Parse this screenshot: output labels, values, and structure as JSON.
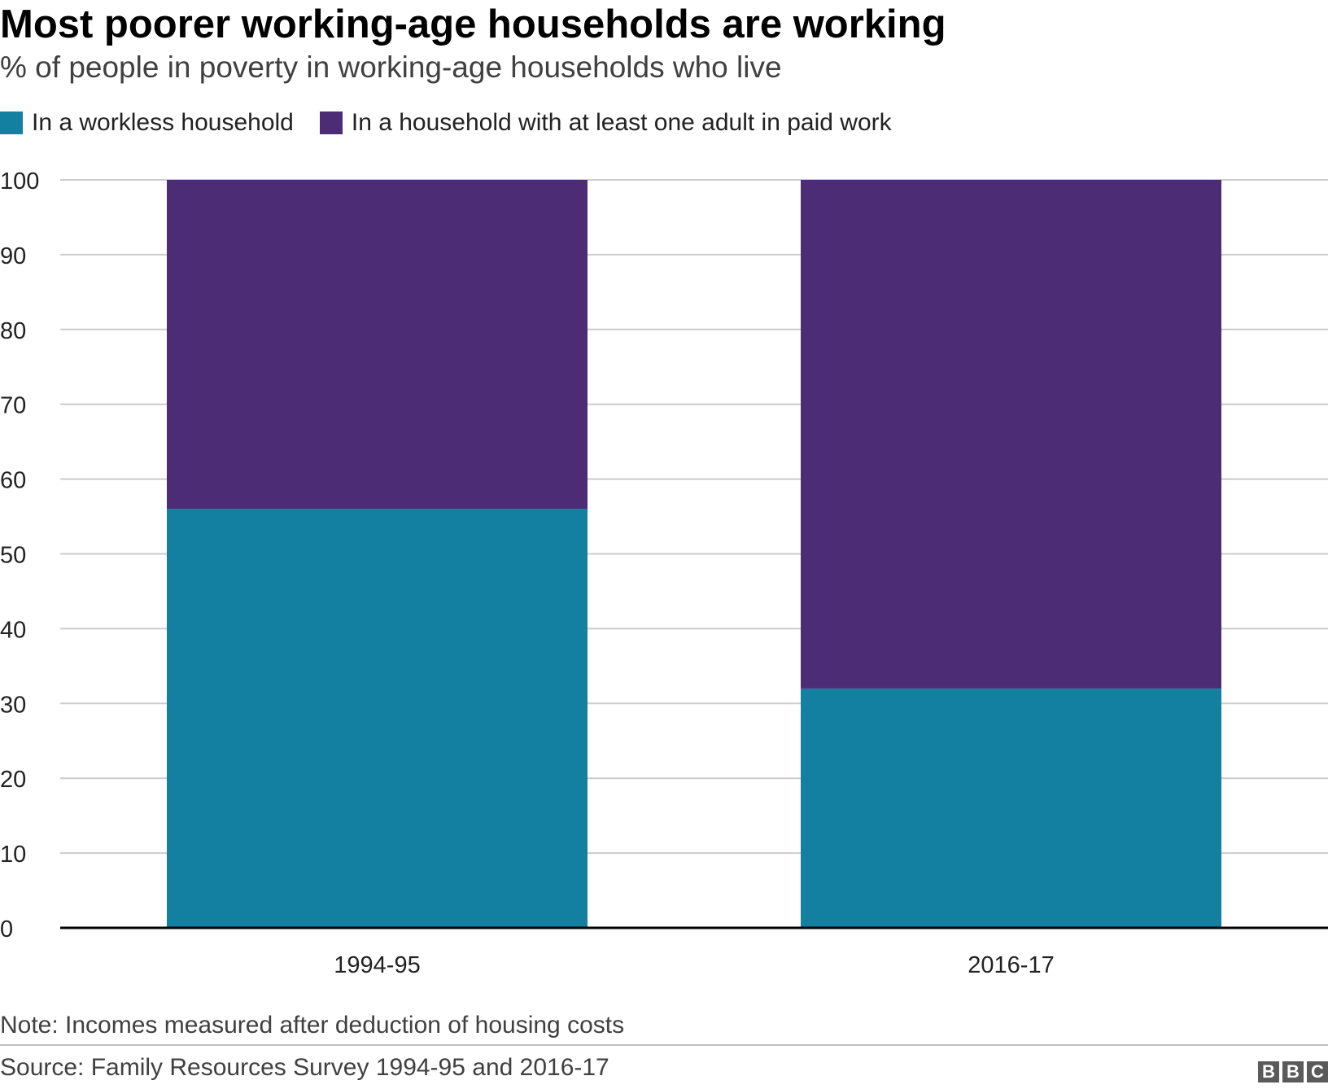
{
  "chart_data": {
    "type": "bar",
    "stacked": true,
    "title": "Most poorer working-age households are working",
    "subtitle": "% of people in poverty in working-age households who live",
    "categories": [
      "1994-95",
      "2016-17"
    ],
    "series": [
      {
        "name": "In a workless household",
        "color": "#1380A1",
        "values": [
          56,
          32
        ]
      },
      {
        "name": "In a household with at least one adult in paid work",
        "color": "#4B2C75",
        "values": [
          44,
          68
        ]
      }
    ],
    "ylim": [
      0,
      100
    ],
    "yticks": [
      0,
      10,
      20,
      30,
      40,
      50,
      60,
      70,
      80,
      90,
      100
    ],
    "xlabel": "",
    "ylabel": "",
    "grid": true,
    "legend_position": "top-left"
  },
  "footer": {
    "note": "Note: Incomes measured after deduction of housing costs",
    "source": "Source: Family Resources Survey 1994-95 and 2016-17",
    "logo_letters": [
      "B",
      "B",
      "C"
    ]
  }
}
